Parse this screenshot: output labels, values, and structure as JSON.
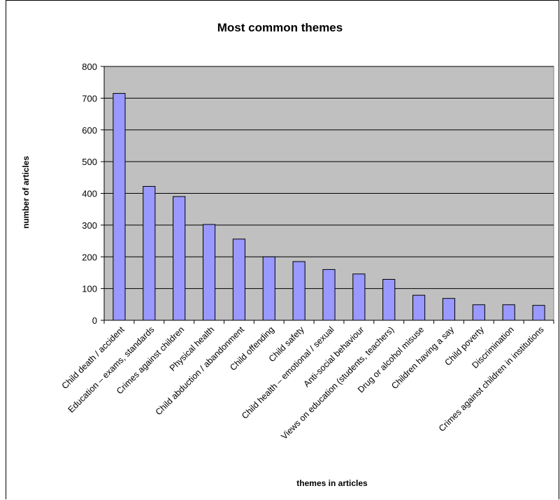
{
  "chart_data": {
    "type": "bar",
    "title": "Most common themes",
    "xlabel": "themes in articles",
    "ylabel": "number of articles",
    "ylim": [
      0,
      800
    ],
    "yticks": [
      0,
      100,
      200,
      300,
      400,
      500,
      600,
      700,
      800
    ],
    "grid": true,
    "legend": "none",
    "categories": [
      "Child death / accident",
      "Education – exams, standards",
      "Crimes against children",
      "Physical health",
      "Child abduction / abandonment",
      "Child offending",
      "Child safety",
      "Child health – emotional / sexual",
      "Anti-social behaviour",
      "Views on education (students, teachers)",
      "Drug or alcohol misuse",
      "Children having a say",
      "Child poverty",
      "Discrimination",
      "Crimes against children in institutions"
    ],
    "values": [
      715,
      422,
      390,
      302,
      256,
      200,
      185,
      160,
      146,
      129,
      79,
      69,
      49,
      49,
      47
    ],
    "colors": {
      "bar_fill": "#9999ff",
      "bar_stroke": "#000000",
      "plot_bg": "#c0c0c0",
      "gridline": "#000000"
    }
  }
}
